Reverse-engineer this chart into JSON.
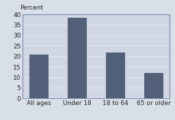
{
  "categories": [
    "All ages",
    "Under 18",
    "18 to 64",
    "65 or older"
  ],
  "values": [
    21,
    38.5,
    22,
    12
  ],
  "bar_color": "#526079",
  "background_color": "#d9dfe9",
  "plot_bg_color": "#d0d6e4",
  "ylabel": "Percent",
  "ylim": [
    0,
    40
  ],
  "yticks": [
    0,
    5,
    10,
    15,
    20,
    25,
    30,
    35,
    40
  ],
  "tick_fontsize": 6.5,
  "bar_width": 0.5,
  "grid_color": "#bec5d4",
  "spine_color": "#7a8aaa"
}
